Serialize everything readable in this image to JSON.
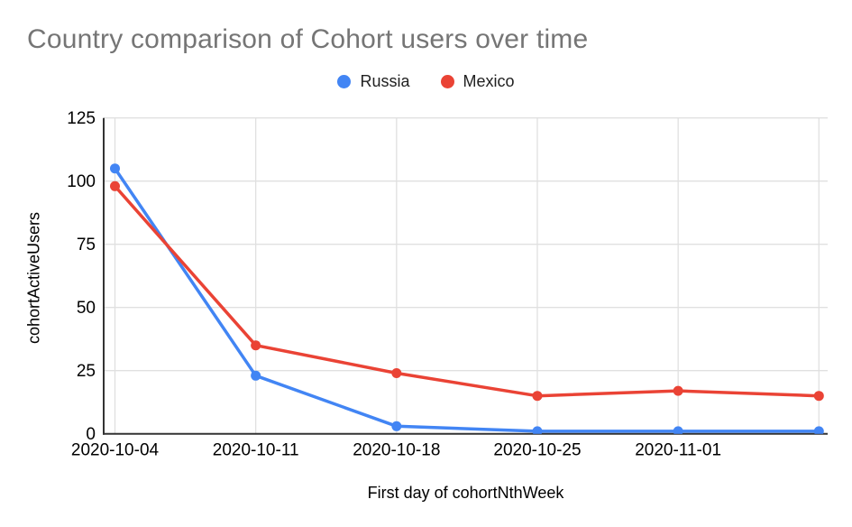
{
  "chart_data": {
    "type": "line",
    "title": "Country comparison of Cohort users over time",
    "xlabel": "First day of cohortNthWeek",
    "ylabel": "cohortActiveUsers",
    "categories": [
      "2020-10-04",
      "2020-10-11",
      "2020-10-18",
      "2020-10-25",
      "2020-11-01",
      ""
    ],
    "series": [
      {
        "name": "Russia",
        "color": "#4285F4",
        "values": [
          105,
          23,
          3,
          1,
          1,
          1
        ]
      },
      {
        "name": "Mexico",
        "color": "#EA4335",
        "values": [
          98,
          35,
          24,
          15,
          17,
          15
        ]
      }
    ],
    "ylim": [
      0,
      125
    ],
    "yticks": [
      0,
      25,
      50,
      75,
      100,
      125
    ],
    "grid": true,
    "legend_position": "top",
    "colors": {
      "grid": "#e0e0e0",
      "axis": "#333333",
      "tick_label": "#000000",
      "title": "#757575",
      "background": "#ffffff"
    }
  }
}
